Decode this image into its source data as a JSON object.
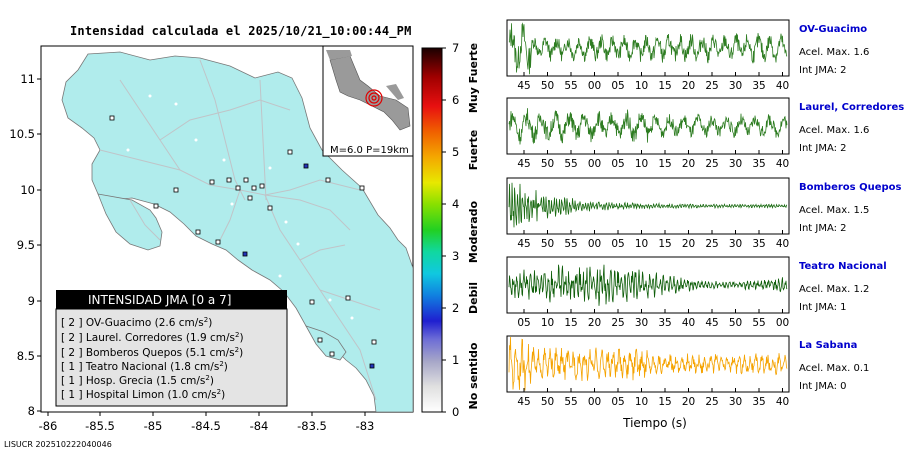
{
  "title": "Intensidad calculada el 2025/10/21_10:00:44_PM",
  "footer_code": "LISUCR 202510222040046",
  "map": {
    "x_ticks": [
      "-86",
      "-85.5",
      "-85",
      "-84.5",
      "-84",
      "-83.5",
      "-83"
    ],
    "y_ticks": [
      "11",
      "10.5",
      "10",
      "9.5",
      "9",
      "8.5",
      "8"
    ],
    "inset_label": "M=6.0 P=19km",
    "land_color": "#b0ecec"
  },
  "legend": {
    "header": "INTENSIDAD JMA [0 a 7]",
    "rows": [
      {
        "level": "[ 2 ]",
        "name": "OV-Guacimo",
        "value": "(2.6 cm/s",
        "sup": "2",
        "tail": ")"
      },
      {
        "level": "[ 2 ]",
        "name": "Laurel. Corredores",
        "value": "(1.9 cm/s",
        "sup": "2",
        "tail": ")"
      },
      {
        "level": "[ 2 ]",
        "name": "Bomberos Quepos",
        "value": "(5.1 cm/s",
        "sup": "2",
        "tail": ")"
      },
      {
        "level": "[ 1 ]",
        "name": "Teatro Nacional",
        "value": "(1.8 cm/s",
        "sup": "2",
        "tail": ")"
      },
      {
        "level": "[ 1 ]",
        "name": "Hosp. Grecia",
        "value": "(1.5 cm/s",
        "sup": "2",
        "tail": ")"
      },
      {
        "level": "[ 1 ]",
        "name": "Hospital Limon",
        "value": "(1.0 cm/s",
        "sup": "2",
        "tail": ")"
      }
    ]
  },
  "colorbar": {
    "ticks": [
      "7",
      "6",
      "5",
      "4",
      "3",
      "2",
      "1",
      "0"
    ],
    "labels": [
      "Muy Fuerte",
      "Fuerte",
      "Moderado",
      "Debil",
      "No sentido"
    ]
  },
  "traces": [
    {
      "station": "OV-Guacimo",
      "accel": "Acel. Max. 1.6",
      "jma": "Int JMA: 2",
      "color": "#2e7d22",
      "ticks": [
        "45",
        "50",
        "55",
        "00",
        "05",
        "10",
        "15",
        "20",
        "25",
        "30",
        "35",
        "40"
      ]
    },
    {
      "station": "Laurel, Corredores",
      "accel": "Acel. Max. 1.6",
      "jma": "Int JMA: 2",
      "color": "#2e7d22",
      "ticks": [
        "45",
        "50",
        "55",
        "00",
        "05",
        "10",
        "15",
        "20",
        "25",
        "30",
        "35",
        "40"
      ]
    },
    {
      "station": "Bomberos Quepos",
      "accel": "Acel. Max. 1.5",
      "jma": "Int JMA: 2",
      "color": "#1a6b12",
      "ticks": [
        "45",
        "50",
        "55",
        "00",
        "05",
        "10",
        "15",
        "20",
        "25",
        "30",
        "35",
        "40"
      ]
    },
    {
      "station": "Teatro Nacional",
      "accel": "Acel. Max. 1.2",
      "jma": "Int JMA: 1",
      "color": "#0f5e0a",
      "ticks": [
        "05",
        "10",
        "15",
        "20",
        "25",
        "30",
        "35",
        "40",
        "45",
        "50",
        "55",
        "00"
      ]
    },
    {
      "station": "La Sabana",
      "accel": "Acel. Max. 0.1",
      "jma": "Int JMA: 0",
      "color": "#f5a300",
      "ticks": [
        "45",
        "50",
        "55",
        "00",
        "05",
        "10",
        "15",
        "20",
        "25",
        "30",
        "35",
        "40"
      ]
    }
  ],
  "xlabel": "Tiempo (s)"
}
